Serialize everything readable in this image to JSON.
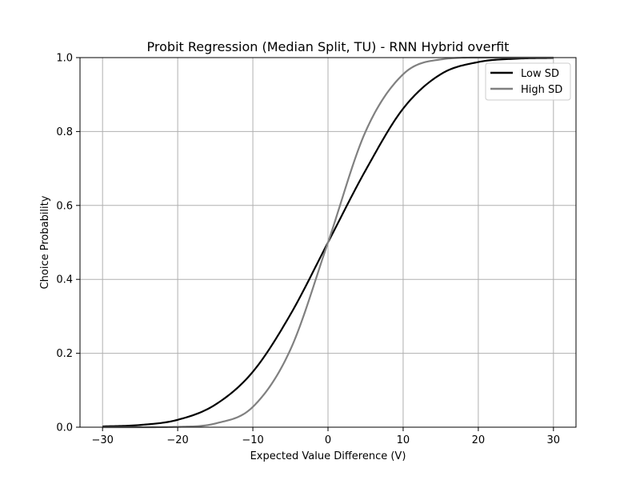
{
  "chart_data": {
    "type": "line",
    "title": "Probit Regression (Median Split, TU) - RNN Hybrid overfit",
    "xlabel": "Expected Value Difference (V)",
    "ylabel": "Choice Probability",
    "xlim": [
      -33,
      33
    ],
    "ylim": [
      0,
      1
    ],
    "xticks": [
      -30,
      -20,
      -10,
      0,
      10,
      20,
      30
    ],
    "xtick_labels": [
      "−30",
      "−20",
      "−10",
      "0",
      "10",
      "20",
      "30"
    ],
    "yticks": [
      0.0,
      0.2,
      0.4,
      0.6,
      0.8,
      1.0
    ],
    "ytick_labels": [
      "0.0",
      "0.2",
      "0.4",
      "0.6",
      "0.8",
      "1.0"
    ],
    "grid": true,
    "legend_position": "top-right",
    "series": [
      {
        "name": "Low SD",
        "color": "#000000",
        "x": [
          -30,
          -25,
          -20,
          -15,
          -10,
          -5,
          0,
          5,
          10,
          15,
          20,
          25,
          30
        ],
        "y": [
          0.002,
          0.006,
          0.02,
          0.061,
          0.15,
          0.305,
          0.5,
          0.695,
          0.862,
          0.955,
          0.988,
          0.997,
          0.999
        ]
      },
      {
        "name": "High SD",
        "color": "#808080",
        "x": [
          -30,
          -25,
          -20,
          -15,
          -10,
          -5,
          0,
          5,
          10,
          15,
          20,
          25,
          30
        ],
        "y": [
          0.0,
          0.0,
          0.001,
          0.01,
          0.055,
          0.21,
          0.5,
          0.8,
          0.955,
          0.995,
          1.0,
          1.0,
          1.0
        ]
      }
    ]
  }
}
